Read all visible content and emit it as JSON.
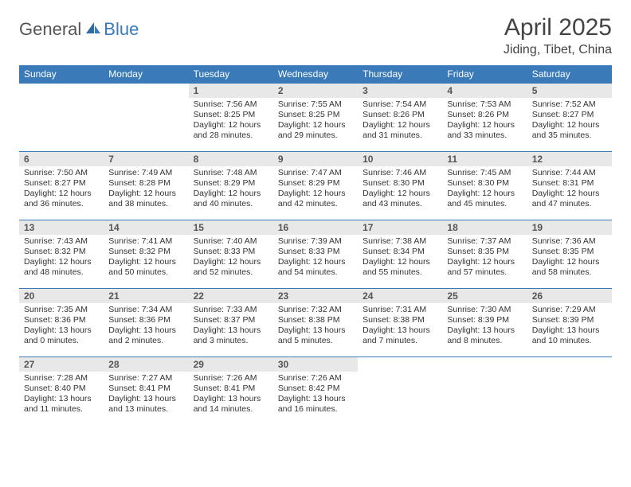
{
  "logo": {
    "text1": "General",
    "text2": "Blue"
  },
  "title": "April 2025",
  "location": "Jiding, Tibet, China",
  "colors": {
    "header_bg": "#3a7ab8",
    "header_text": "#ffffff",
    "daynum_bg": "#e8e8e8",
    "border": "#3a7ab8",
    "logo_blue": "#3a7ab8",
    "logo_gray": "#555555"
  },
  "day_headers": [
    "Sunday",
    "Monday",
    "Tuesday",
    "Wednesday",
    "Thursday",
    "Friday",
    "Saturday"
  ],
  "weeks": [
    [
      null,
      null,
      {
        "n": "1",
        "sunrise": "Sunrise: 7:56 AM",
        "sunset": "Sunset: 8:25 PM",
        "daylight1": "Daylight: 12 hours",
        "daylight2": "and 28 minutes."
      },
      {
        "n": "2",
        "sunrise": "Sunrise: 7:55 AM",
        "sunset": "Sunset: 8:25 PM",
        "daylight1": "Daylight: 12 hours",
        "daylight2": "and 29 minutes."
      },
      {
        "n": "3",
        "sunrise": "Sunrise: 7:54 AM",
        "sunset": "Sunset: 8:26 PM",
        "daylight1": "Daylight: 12 hours",
        "daylight2": "and 31 minutes."
      },
      {
        "n": "4",
        "sunrise": "Sunrise: 7:53 AM",
        "sunset": "Sunset: 8:26 PM",
        "daylight1": "Daylight: 12 hours",
        "daylight2": "and 33 minutes."
      },
      {
        "n": "5",
        "sunrise": "Sunrise: 7:52 AM",
        "sunset": "Sunset: 8:27 PM",
        "daylight1": "Daylight: 12 hours",
        "daylight2": "and 35 minutes."
      }
    ],
    [
      {
        "n": "6",
        "sunrise": "Sunrise: 7:50 AM",
        "sunset": "Sunset: 8:27 PM",
        "daylight1": "Daylight: 12 hours",
        "daylight2": "and 36 minutes."
      },
      {
        "n": "7",
        "sunrise": "Sunrise: 7:49 AM",
        "sunset": "Sunset: 8:28 PM",
        "daylight1": "Daylight: 12 hours",
        "daylight2": "and 38 minutes."
      },
      {
        "n": "8",
        "sunrise": "Sunrise: 7:48 AM",
        "sunset": "Sunset: 8:29 PM",
        "daylight1": "Daylight: 12 hours",
        "daylight2": "and 40 minutes."
      },
      {
        "n": "9",
        "sunrise": "Sunrise: 7:47 AM",
        "sunset": "Sunset: 8:29 PM",
        "daylight1": "Daylight: 12 hours",
        "daylight2": "and 42 minutes."
      },
      {
        "n": "10",
        "sunrise": "Sunrise: 7:46 AM",
        "sunset": "Sunset: 8:30 PM",
        "daylight1": "Daylight: 12 hours",
        "daylight2": "and 43 minutes."
      },
      {
        "n": "11",
        "sunrise": "Sunrise: 7:45 AM",
        "sunset": "Sunset: 8:30 PM",
        "daylight1": "Daylight: 12 hours",
        "daylight2": "and 45 minutes."
      },
      {
        "n": "12",
        "sunrise": "Sunrise: 7:44 AM",
        "sunset": "Sunset: 8:31 PM",
        "daylight1": "Daylight: 12 hours",
        "daylight2": "and 47 minutes."
      }
    ],
    [
      {
        "n": "13",
        "sunrise": "Sunrise: 7:43 AM",
        "sunset": "Sunset: 8:32 PM",
        "daylight1": "Daylight: 12 hours",
        "daylight2": "and 48 minutes."
      },
      {
        "n": "14",
        "sunrise": "Sunrise: 7:41 AM",
        "sunset": "Sunset: 8:32 PM",
        "daylight1": "Daylight: 12 hours",
        "daylight2": "and 50 minutes."
      },
      {
        "n": "15",
        "sunrise": "Sunrise: 7:40 AM",
        "sunset": "Sunset: 8:33 PM",
        "daylight1": "Daylight: 12 hours",
        "daylight2": "and 52 minutes."
      },
      {
        "n": "16",
        "sunrise": "Sunrise: 7:39 AM",
        "sunset": "Sunset: 8:33 PM",
        "daylight1": "Daylight: 12 hours",
        "daylight2": "and 54 minutes."
      },
      {
        "n": "17",
        "sunrise": "Sunrise: 7:38 AM",
        "sunset": "Sunset: 8:34 PM",
        "daylight1": "Daylight: 12 hours",
        "daylight2": "and 55 minutes."
      },
      {
        "n": "18",
        "sunrise": "Sunrise: 7:37 AM",
        "sunset": "Sunset: 8:35 PM",
        "daylight1": "Daylight: 12 hours",
        "daylight2": "and 57 minutes."
      },
      {
        "n": "19",
        "sunrise": "Sunrise: 7:36 AM",
        "sunset": "Sunset: 8:35 PM",
        "daylight1": "Daylight: 12 hours",
        "daylight2": "and 58 minutes."
      }
    ],
    [
      {
        "n": "20",
        "sunrise": "Sunrise: 7:35 AM",
        "sunset": "Sunset: 8:36 PM",
        "daylight1": "Daylight: 13 hours",
        "daylight2": "and 0 minutes."
      },
      {
        "n": "21",
        "sunrise": "Sunrise: 7:34 AM",
        "sunset": "Sunset: 8:36 PM",
        "daylight1": "Daylight: 13 hours",
        "daylight2": "and 2 minutes."
      },
      {
        "n": "22",
        "sunrise": "Sunrise: 7:33 AM",
        "sunset": "Sunset: 8:37 PM",
        "daylight1": "Daylight: 13 hours",
        "daylight2": "and 3 minutes."
      },
      {
        "n": "23",
        "sunrise": "Sunrise: 7:32 AM",
        "sunset": "Sunset: 8:38 PM",
        "daylight1": "Daylight: 13 hours",
        "daylight2": "and 5 minutes."
      },
      {
        "n": "24",
        "sunrise": "Sunrise: 7:31 AM",
        "sunset": "Sunset: 8:38 PM",
        "daylight1": "Daylight: 13 hours",
        "daylight2": "and 7 minutes."
      },
      {
        "n": "25",
        "sunrise": "Sunrise: 7:30 AM",
        "sunset": "Sunset: 8:39 PM",
        "daylight1": "Daylight: 13 hours",
        "daylight2": "and 8 minutes."
      },
      {
        "n": "26",
        "sunrise": "Sunrise: 7:29 AM",
        "sunset": "Sunset: 8:39 PM",
        "daylight1": "Daylight: 13 hours",
        "daylight2": "and 10 minutes."
      }
    ],
    [
      {
        "n": "27",
        "sunrise": "Sunrise: 7:28 AM",
        "sunset": "Sunset: 8:40 PM",
        "daylight1": "Daylight: 13 hours",
        "daylight2": "and 11 minutes."
      },
      {
        "n": "28",
        "sunrise": "Sunrise: 7:27 AM",
        "sunset": "Sunset: 8:41 PM",
        "daylight1": "Daylight: 13 hours",
        "daylight2": "and 13 minutes."
      },
      {
        "n": "29",
        "sunrise": "Sunrise: 7:26 AM",
        "sunset": "Sunset: 8:41 PM",
        "daylight1": "Daylight: 13 hours",
        "daylight2": "and 14 minutes."
      },
      {
        "n": "30",
        "sunrise": "Sunrise: 7:26 AM",
        "sunset": "Sunset: 8:42 PM",
        "daylight1": "Daylight: 13 hours",
        "daylight2": "and 16 minutes."
      },
      null,
      null,
      null
    ]
  ]
}
